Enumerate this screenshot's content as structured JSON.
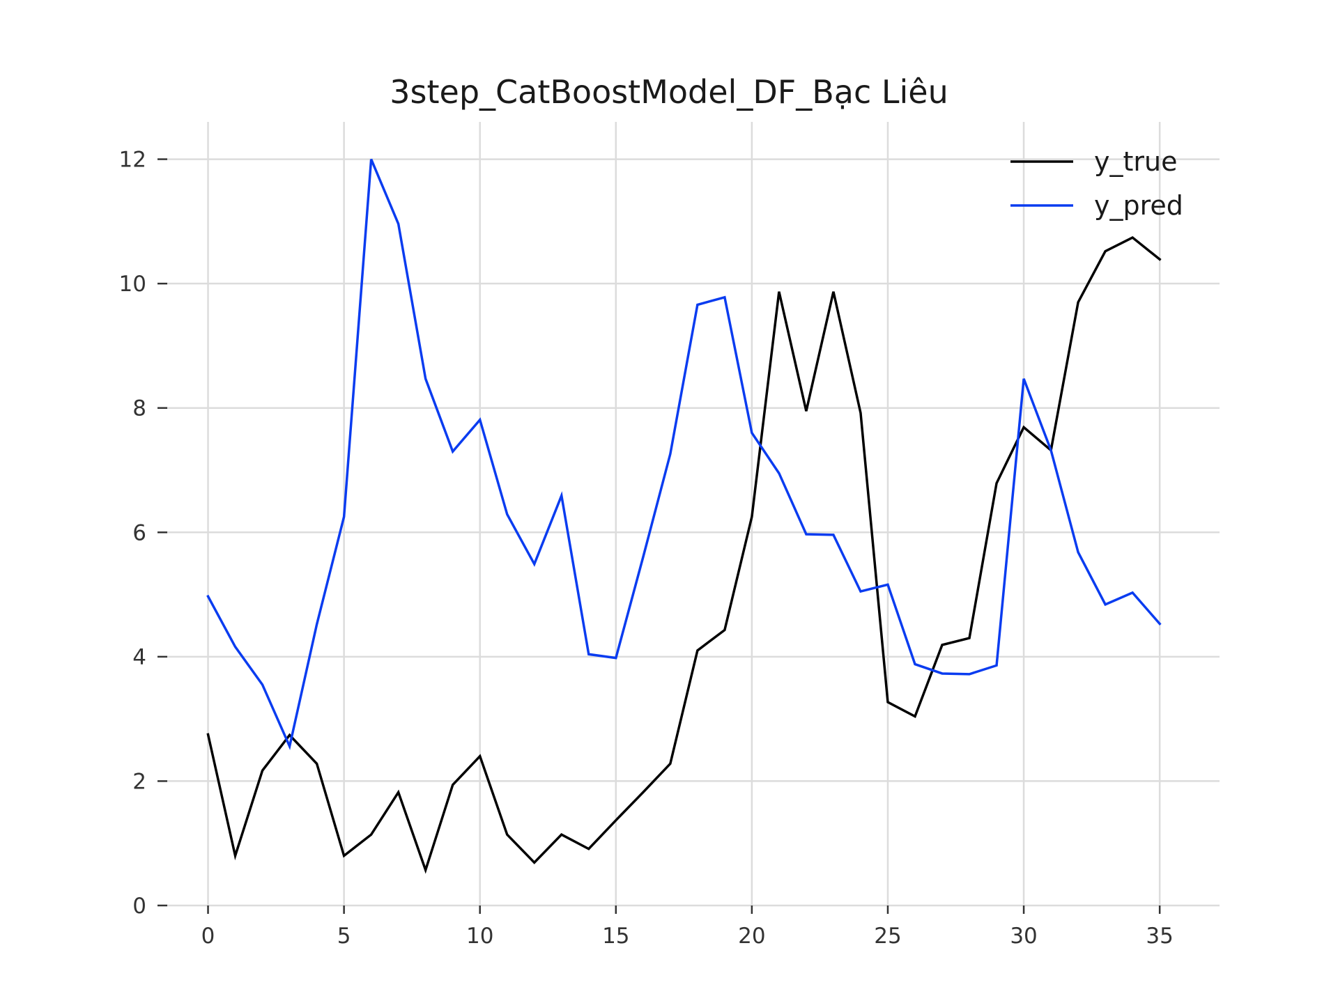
{
  "chart_data": {
    "type": "line",
    "title": "3step_CatBoostModel_DF_Bạc Liêu",
    "xlabel": "",
    "ylabel": "",
    "xlim": [
      -1.5,
      37.2
    ],
    "ylim": [
      0,
      12.6
    ],
    "xticks": [
      0,
      5,
      10,
      15,
      20,
      25,
      30,
      35
    ],
    "yticks": [
      0,
      2,
      4,
      6,
      8,
      10,
      12
    ],
    "grid": true,
    "legend_position": "top-right",
    "x": [
      0,
      1,
      2,
      3,
      4,
      5,
      6,
      7,
      8,
      9,
      10,
      11,
      12,
      13,
      14,
      15,
      16,
      17,
      18,
      19,
      20,
      21,
      22,
      23,
      24,
      25,
      26,
      27,
      28,
      29,
      30,
      31,
      32,
      33,
      34,
      35
    ],
    "series": [
      {
        "name": "y_true",
        "color": "#000000",
        "values": [
          2.75,
          0.8,
          2.17,
          2.74,
          2.28,
          0.8,
          1.14,
          1.82,
          0.57,
          1.94,
          2.4,
          1.14,
          0.69,
          1.14,
          0.91,
          1.37,
          1.82,
          2.28,
          4.1,
          4.43,
          6.25,
          9.87,
          7.95,
          9.87,
          7.92,
          3.27,
          3.04,
          4.19,
          4.3,
          6.79,
          7.69,
          7.32,
          9.7,
          10.52,
          10.74,
          10.39
        ]
      },
      {
        "name": "y_pred",
        "color": "#0a3cf0",
        "values": [
          4.97,
          4.16,
          3.55,
          2.56,
          4.52,
          6.25,
          12.0,
          10.96,
          8.47,
          7.3,
          7.81,
          6.29,
          5.49,
          6.59,
          4.04,
          3.98,
          5.6,
          7.26,
          9.66,
          9.78,
          7.6,
          6.95,
          5.97,
          5.96,
          5.05,
          5.16,
          3.88,
          3.73,
          3.72,
          3.86,
          8.47,
          7.32,
          5.68,
          4.84,
          5.03,
          4.53
        ]
      }
    ]
  }
}
